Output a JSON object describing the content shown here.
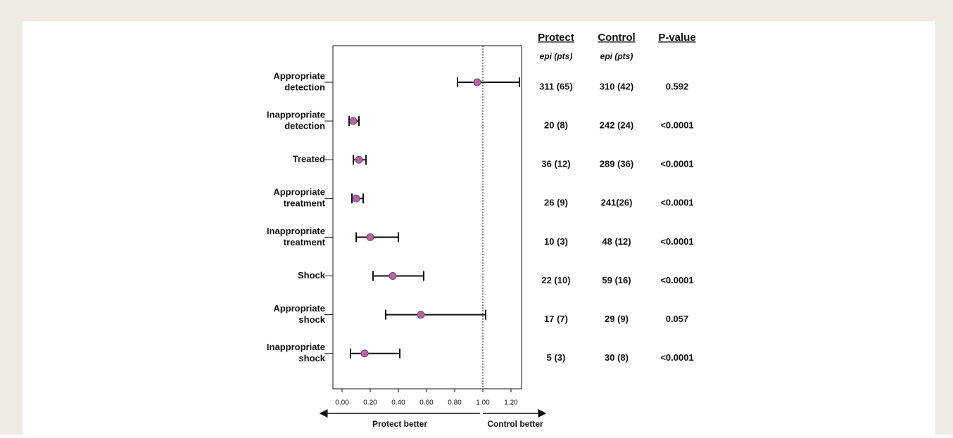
{
  "chart_data": {
    "type": "forest",
    "categories": [
      [
        "Appropriate",
        "detection"
      ],
      [
        "Inappropriate",
        "detection"
      ],
      [
        "Treated"
      ],
      [
        "Appropriate",
        "treatment"
      ],
      [
        "Inappropriate",
        "treatment"
      ],
      [
        "Shock"
      ],
      [
        "Appropriate",
        "shock"
      ],
      [
        "Inappropriate",
        "shock"
      ]
    ],
    "estimates": [
      0.96,
      0.08,
      0.12,
      0.1,
      0.2,
      0.36,
      0.56,
      0.16
    ],
    "lower": [
      0.82,
      0.05,
      0.08,
      0.07,
      0.1,
      0.22,
      0.31,
      0.06
    ],
    "upper": [
      1.26,
      0.12,
      0.17,
      0.15,
      0.4,
      0.58,
      1.02,
      0.41
    ],
    "color": "#c0609e",
    "xlim": [
      -0.065,
      1.275
    ],
    "xticks": [
      {
        "value": 0,
        "label": "0.00"
      },
      {
        "value": 0.2,
        "label": "0.20"
      },
      {
        "value": 0.4,
        "label": "0.40"
      },
      {
        "value": 0.6,
        "label": "0.60"
      },
      {
        "value": 0.8,
        "label": "0.80"
      },
      {
        "value": 1,
        "label": "1.00"
      },
      {
        "value": 1.2,
        "label": "1.20"
      }
    ],
    "reference_line": 1,
    "annotations": [
      "Protect better",
      "Control better"
    ]
  },
  "table": {
    "columns": [
      "Protect",
      "Control",
      "P-value"
    ],
    "subheaders": [
      "epi (pts)",
      "epi (pts)"
    ],
    "rows": [
      [
        "311 (65)",
        "310 (42)",
        "0.592"
      ],
      [
        "20 (8)",
        "242 (24)",
        "<0.0001"
      ],
      [
        "36 (12)",
        "289 (36)",
        "<0.0001"
      ],
      [
        "26 (9)",
        "241(26)",
        "<0.0001"
      ],
      [
        "10 (3)",
        "48 (12)",
        "<0.0001"
      ],
      [
        "22 (10)",
        "59 (16)",
        "<0.0001"
      ],
      [
        "17 (7)",
        "29 (9)",
        "0.057"
      ],
      [
        "5 (3)",
        "30 (8)",
        "<0.0001"
      ]
    ]
  }
}
